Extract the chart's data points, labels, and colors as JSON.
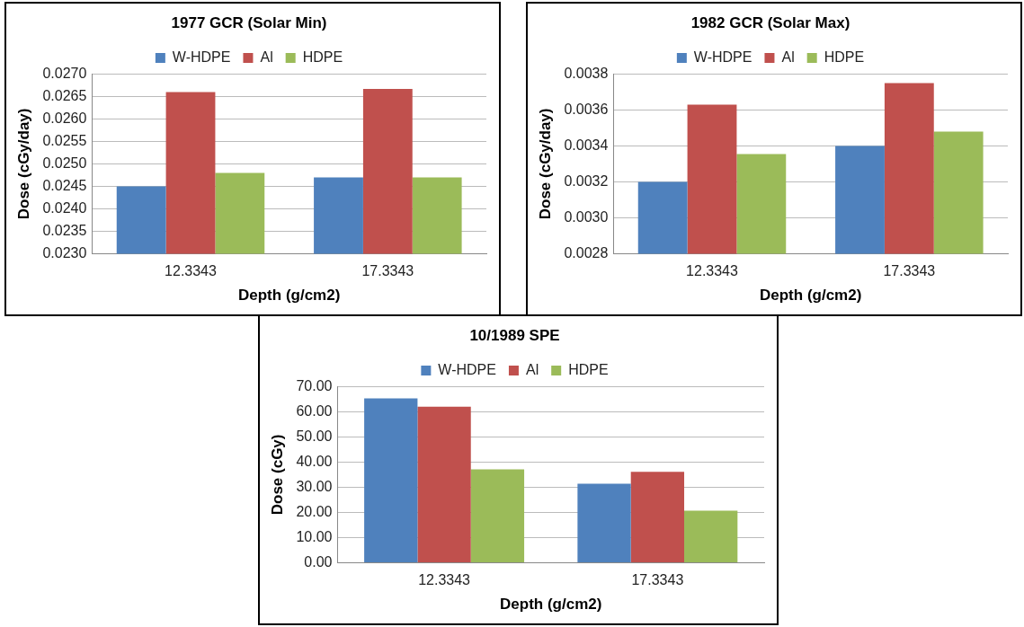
{
  "chart_data": [
    {
      "type": "bar",
      "title": "1977 GCR (Solar Min)",
      "xlabel": "Depth (g/cm2)",
      "ylabel": "Dose (cGy/day)",
      "categories": [
        "12.3343",
        "17.3343"
      ],
      "series": [
        {
          "name": "W-HDPE",
          "color": "#4f81bd",
          "values": [
            0.0245,
            0.0247
          ]
        },
        {
          "name": "Al",
          "color": "#c0504d",
          "values": [
            0.0266,
            0.02667
          ]
        },
        {
          "name": "HDPE",
          "color": "#9bbb59",
          "values": [
            0.0248,
            0.0247
          ]
        }
      ],
      "ylim": [
        0.023,
        0.027
      ],
      "yticks": [
        {
          "value": 0.023,
          "label": "0.0230"
        },
        {
          "value": 0.0235,
          "label": "0.0235"
        },
        {
          "value": 0.024,
          "label": "0.0240"
        },
        {
          "value": 0.0245,
          "label": "0.0245"
        },
        {
          "value": 0.025,
          "label": "0.0250"
        },
        {
          "value": 0.0255,
          "label": "0.0255"
        },
        {
          "value": 0.026,
          "label": "0.0260"
        },
        {
          "value": 0.0265,
          "label": "0.0265"
        },
        {
          "value": 0.027,
          "label": "0.0270"
        }
      ],
      "grid": "y",
      "legend": "top"
    },
    {
      "type": "bar",
      "title": "1982 GCR (Solar Max)",
      "xlabel": "Depth (g/cm2)",
      "ylabel": "Dose (cGy/day)",
      "categories": [
        "12.3343",
        "17.3343"
      ],
      "series": [
        {
          "name": "W-HDPE",
          "color": "#4f81bd",
          "values": [
            0.0032,
            0.0034
          ]
        },
        {
          "name": "Al",
          "color": "#c0504d",
          "values": [
            0.00363,
            0.00375
          ]
        },
        {
          "name": "HDPE",
          "color": "#9bbb59",
          "values": [
            0.003355,
            0.00348
          ]
        }
      ],
      "ylim": [
        0.0028,
        0.0038
      ],
      "yticks": [
        {
          "value": 0.0028,
          "label": "0.0028"
        },
        {
          "value": 0.003,
          "label": "0.0030"
        },
        {
          "value": 0.0032,
          "label": "0.0032"
        },
        {
          "value": 0.0034,
          "label": "0.0034"
        },
        {
          "value": 0.0036,
          "label": "0.0036"
        },
        {
          "value": 0.0038,
          "label": "0.0038"
        }
      ],
      "grid": "y",
      "legend": "top"
    },
    {
      "type": "bar",
      "title": "10/1989 SPE",
      "xlabel": "Depth (g/cm2)",
      "ylabel": "Dose (cGy)",
      "categories": [
        "12.3343",
        "17.3343"
      ],
      "series": [
        {
          "name": "W-HDPE",
          "color": "#4f81bd",
          "values": [
            65.3,
            31.4
          ]
        },
        {
          "name": "Al",
          "color": "#c0504d",
          "values": [
            62.0,
            36.1
          ]
        },
        {
          "name": "HDPE",
          "color": "#9bbb59",
          "values": [
            37.1,
            20.7
          ]
        }
      ],
      "ylim": [
        0,
        70
      ],
      "yticks": [
        {
          "value": 0,
          "label": "0.00"
        },
        {
          "value": 10,
          "label": "10.00"
        },
        {
          "value": 20,
          "label": "20.00"
        },
        {
          "value": 30,
          "label": "30.00"
        },
        {
          "value": 40,
          "label": "40.00"
        },
        {
          "value": 50,
          "label": "50.00"
        },
        {
          "value": 60,
          "label": "60.00"
        },
        {
          "value": 70,
          "label": "70.00"
        }
      ],
      "grid": "y",
      "legend": "top"
    }
  ]
}
